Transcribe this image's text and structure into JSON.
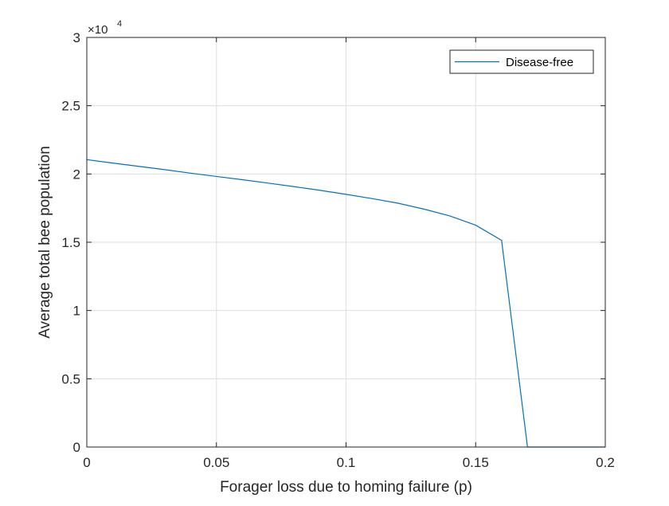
{
  "chart_data": {
    "type": "line",
    "xlabel": "Forager loss due to homing failure (p)",
    "ylabel": "Average total bee population",
    "xlim": [
      0,
      0.2
    ],
    "ylim": [
      0,
      30000
    ],
    "x_ticks": [
      0,
      0.05,
      0.1,
      0.15,
      0.2
    ],
    "x_tick_labels": [
      "0",
      "0.05",
      "0.1",
      "0.15",
      "0.2"
    ],
    "y_ticks": [
      0,
      5000,
      10000,
      15000,
      20000,
      25000,
      30000
    ],
    "y_tick_labels": [
      "0",
      "0.5",
      "1",
      "1.5",
      "2",
      "2.5",
      "3"
    ],
    "y_exponent_base": "×10",
    "y_exponent_power": "4",
    "grid": true,
    "legend": {
      "location": "top-right"
    },
    "series": [
      {
        "name": "Disease-free",
        "color": "#0072BD",
        "x": [
          0,
          0.01,
          0.02,
          0.03,
          0.04,
          0.05,
          0.06,
          0.07,
          0.08,
          0.09,
          0.1,
          0.11,
          0.12,
          0.13,
          0.14,
          0.15,
          0.16,
          0.17,
          0.18,
          0.19,
          0.2
        ],
        "y": [
          21050,
          20800,
          20560,
          20320,
          20060,
          19820,
          19580,
          19330,
          19070,
          18800,
          18510,
          18200,
          17860,
          17430,
          16930,
          16250,
          15140,
          0,
          0,
          0,
          0
        ]
      }
    ]
  }
}
